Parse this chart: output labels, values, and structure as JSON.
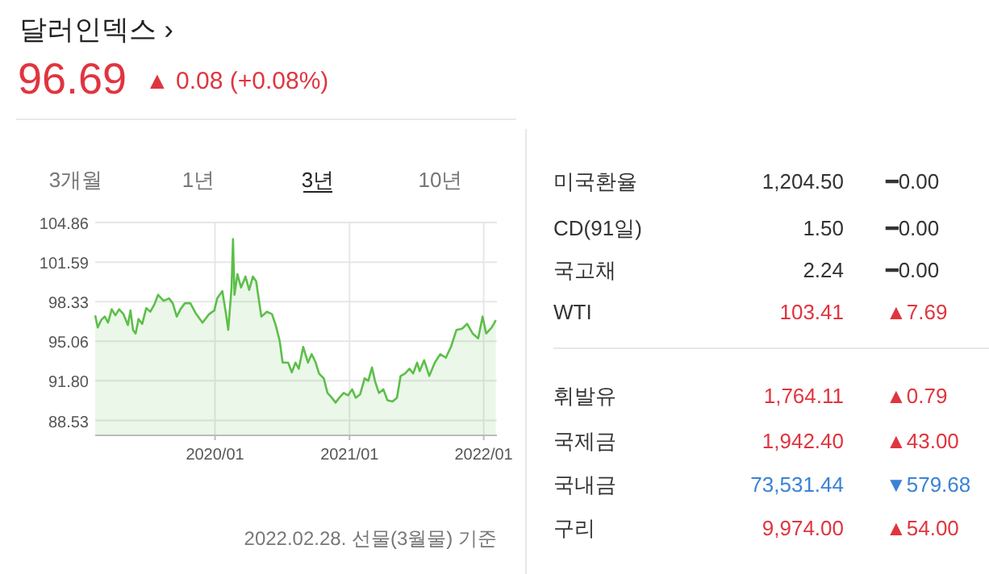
{
  "chart_data": [
    {
      "type": "area",
      "title": "달러인덱스 ›",
      "subtitle": "96.69",
      "annotations": [
        "▲ 0.08 (+0.08%)",
        "3개월",
        "1년",
        "3년",
        "10년",
        "2022.02.28. 선물(3월물) 기준"
      ],
      "x": [
        "2019-02-09",
        "2019-02-16",
        "2019-02-25",
        "2019-03-07",
        "2019-03-16",
        "2019-03-26",
        "2019-04-05",
        "2019-04-15",
        "2019-04-27",
        "2019-05-09",
        "2019-05-16",
        "2019-05-23",
        "2019-05-30",
        "2019-06-07",
        "2019-06-17",
        "2019-06-28",
        "2019-07-09",
        "2019-07-20",
        "2019-07-30",
        "2019-08-14",
        "2019-08-29",
        "2019-09-08",
        "2019-09-19",
        "2019-09-29",
        "2019-10-11",
        "2019-10-26",
        "2019-11-09",
        "2019-11-28",
        "2019-12-16",
        "2019-12-30",
        "2020-01-07",
        "2020-01-21",
        "2020-01-31",
        "2020-02-06",
        "2020-02-15",
        "2020-02-19",
        "2020-02-23",
        "2020-03-02",
        "2020-03-12",
        "2020-03-24",
        "2020-04-03",
        "2020-04-13",
        "2020-04-22",
        "2020-05-06",
        "2020-05-21",
        "2020-06-04",
        "2020-06-14",
        "2020-06-25",
        "2020-07-03",
        "2020-07-18",
        "2020-07-28",
        "2020-08-07",
        "2020-08-16",
        "2020-08-28",
        "2020-09-10",
        "2020-09-20",
        "2020-10-01",
        "2020-10-10",
        "2020-10-23",
        "2020-11-02",
        "2020-11-14",
        "2020-11-24",
        "2020-12-04",
        "2020-12-16",
        "2020-12-28",
        "2021-01-08",
        "2021-01-18",
        "2021-01-30",
        "2021-02-11",
        "2021-02-21",
        "2021-03-03",
        "2021-03-12",
        "2021-03-22",
        "2021-04-03",
        "2021-04-14",
        "2021-04-28",
        "2021-05-10",
        "2021-05-20",
        "2021-06-01",
        "2021-06-13",
        "2021-06-23",
        "2021-07-04",
        "2021-07-11",
        "2021-07-23",
        "2021-08-06",
        "2021-08-21",
        "2021-09-05",
        "2021-09-20",
        "2021-10-04",
        "2021-10-19",
        "2021-11-03",
        "2021-11-17",
        "2021-12-02",
        "2021-12-17",
        "2021-12-29",
        "2022-01-08",
        "2022-01-23",
        "2022-02-03"
      ],
      "series": [
        {
          "color": "#5cbf4a",
          "values": [
            97.2,
            96.2,
            96.8,
            97.1,
            96.6,
            97.7,
            97.2,
            97.7,
            97.3,
            96.4,
            97.6,
            96.0,
            95.7,
            96.9,
            96.5,
            97.8,
            97.5,
            98.1,
            98.9,
            98.4,
            98.6,
            98.2,
            97.1,
            97.7,
            98.2,
            98.2,
            97.4,
            96.6,
            97.3,
            97.6,
            98.6,
            99.2,
            97.3,
            96.0,
            99.5,
            103.5,
            98.9,
            100.6,
            99.5,
            100.4,
            99.3,
            100.4,
            100.0,
            97.1,
            97.5,
            97.3,
            96.4,
            95.1,
            93.3,
            93.3,
            92.5,
            93.3,
            92.8,
            94.6,
            93.3,
            94.0,
            93.3,
            92.4,
            92.0,
            90.8,
            90.4,
            90.0,
            90.4,
            90.8,
            90.6,
            91.1,
            90.4,
            90.7,
            92.0,
            91.8,
            92.9,
            91.7,
            90.8,
            91.1,
            90.2,
            90.1,
            90.4,
            92.2,
            92.4,
            92.8,
            92.4,
            93.3,
            92.6,
            93.5,
            92.2,
            93.3,
            94.0,
            93.7,
            94.6,
            96.0,
            96.1,
            96.5,
            95.7,
            95.3,
            97.1,
            95.7,
            96.2,
            96.8
          ]
        }
      ],
      "xlim": [
        "2019-02-09",
        "2022-02-06"
      ],
      "xticks": [
        {
          "value": "2020-01-01",
          "label": "2020/01"
        },
        {
          "value": "2021-01-01",
          "label": "2021/01"
        },
        {
          "value": "2022-01-01",
          "label": "2022/01"
        }
      ],
      "ylim": [
        87.3,
        104.86
      ],
      "yticks": [
        {
          "value": 88.53,
          "label": "88.53"
        },
        {
          "value": 91.8,
          "label": "91.80"
        },
        {
          "value": 95.06,
          "label": "95.06"
        },
        {
          "value": 98.33,
          "label": "98.33"
        },
        {
          "value": 101.59,
          "label": "101.59"
        },
        {
          "value": 104.86,
          "label": "104.86"
        }
      ],
      "grid": true,
      "marker": "none",
      "line_style": "solid"
    },
    {
      "type": "other",
      "categories": [
        "미국환율",
        "CD(91일)",
        "국고채",
        "WTI",
        "휘발유",
        "국제금",
        "국내금",
        "구리"
      ],
      "series": [
        {
          "values": [
            1204.5,
            1.5,
            2.24,
            103.41,
            1764.11,
            1942.4,
            73531.44,
            9974.0
          ],
          "value_labels": [
            "1,204.50",
            "1.50",
            "2.24",
            "103.41",
            "1,764.11",
            "1,942.40",
            "73,531.44",
            "9,974.00"
          ],
          "colors": [
            "#333333",
            "#333333",
            "#333333",
            "#e0353f",
            "#e0353f",
            "#e0353f",
            "#3b82d6",
            "#e0353f"
          ]
        },
        {
          "values": [
            0.0,
            0.0,
            0.0,
            7.69,
            0.79,
            43.0,
            579.68,
            54.0
          ],
          "value_labels": [
            "━0.00",
            "━0.00",
            "━0.00",
            "▲7.69",
            "▲0.79",
            "▲43.00",
            "▼579.68",
            "▲54.00"
          ],
          "colors": [
            "#333333",
            "#333333",
            "#333333",
            "#e0353f",
            "#e0353f",
            "#e0353f",
            "#3b82d6",
            "#e0353f"
          ]
        }
      ]
    }
  ]
}
